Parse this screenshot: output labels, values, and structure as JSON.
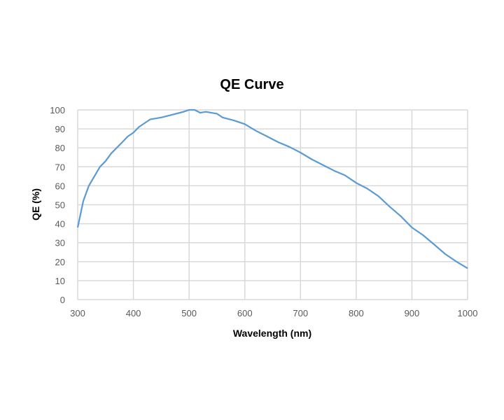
{
  "chart_data": {
    "type": "line",
    "title": "QE Curve",
    "xlabel": "Wavelength (nm)",
    "ylabel": "QE (%)",
    "xlim": [
      300,
      1000
    ],
    "ylim": [
      0,
      100
    ],
    "grid": true,
    "x_ticks": [
      "300",
      "400",
      "500",
      "600",
      "700",
      "800",
      "900",
      "1000"
    ],
    "y_ticks": [
      "0",
      "10",
      "20",
      "30",
      "40",
      "50",
      "60",
      "70",
      "80",
      "90",
      "100"
    ],
    "line_color": "#5b9bd5",
    "series": [
      {
        "name": "QE",
        "x": [
          300,
          310,
          320,
          330,
          340,
          350,
          360,
          370,
          380,
          390,
          400,
          410,
          420,
          430,
          450,
          470,
          490,
          500,
          510,
          520,
          530,
          550,
          560,
          580,
          600,
          620,
          640,
          660,
          680,
          700,
          720,
          740,
          760,
          780,
          800,
          820,
          840,
          860,
          880,
          900,
          920,
          940,
          960,
          980,
          1000
        ],
        "y": [
          38,
          52,
          60,
          65,
          70,
          73,
          77,
          80,
          83,
          86,
          88,
          91,
          93,
          95,
          96,
          97.5,
          99,
          100,
          100,
          98.5,
          99,
          98,
          96,
          94.5,
          92.5,
          89,
          86,
          83,
          80.5,
          77.5,
          74,
          71,
          68,
          65.5,
          61.5,
          58.5,
          54.5,
          49,
          44,
          38,
          34,
          29,
          24,
          20,
          16.5
        ]
      }
    ]
  }
}
